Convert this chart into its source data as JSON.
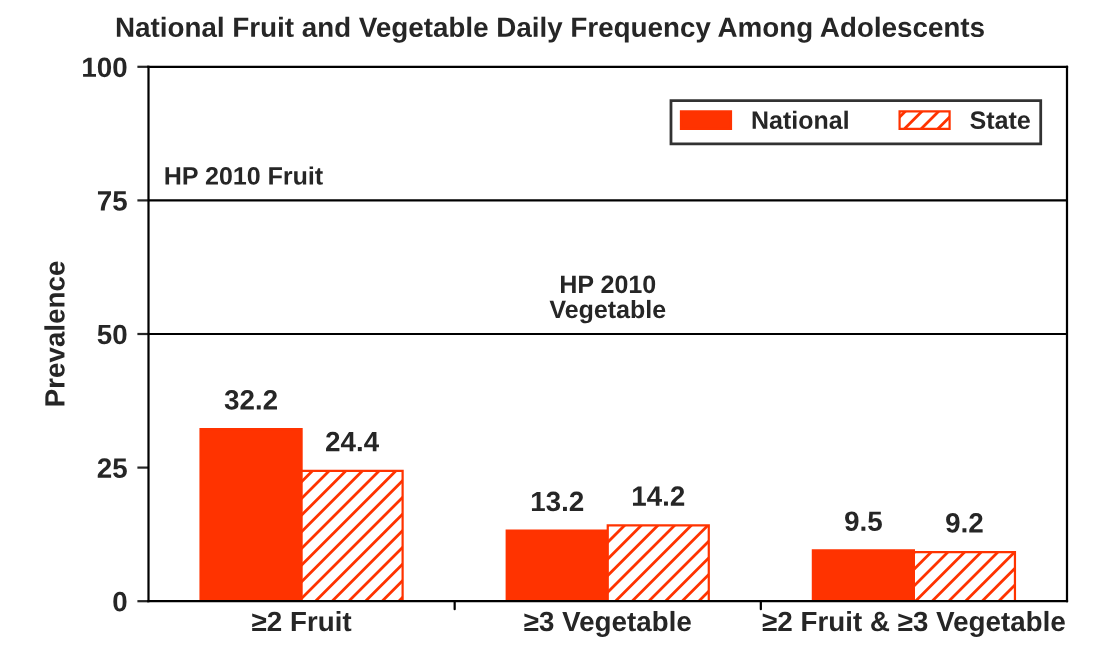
{
  "chart_data": {
    "type": "bar",
    "title": "National Fruit and Vegetable Daily Frequency Among Adolescents",
    "ylabel": "Prevalence",
    "categories": [
      "≥2 Fruit",
      "≥3 Vegetable",
      "≥2 Fruit & ≥3 Vegetable"
    ],
    "series": [
      {
        "name": "National",
        "color": "#ff3300",
        "values": [
          32.2,
          13.2,
          9.5
        ]
      },
      {
        "name": "State",
        "color": "#ff3300",
        "values": [
          24.4,
          14.2,
          9.2
        ]
      }
    ],
    "ylim": [
      0,
      100
    ],
    "yticks": [
      0,
      25,
      50,
      75,
      100
    ],
    "data_labels": true,
    "legend": "top right",
    "grid": false,
    "ref_lines": [
      {
        "axis": "y",
        "value": 75,
        "label": "HP 2010 Fruit"
      },
      {
        "axis": "y",
        "value": 50,
        "label": "HP 2010\nVegetable"
      }
    ]
  }
}
